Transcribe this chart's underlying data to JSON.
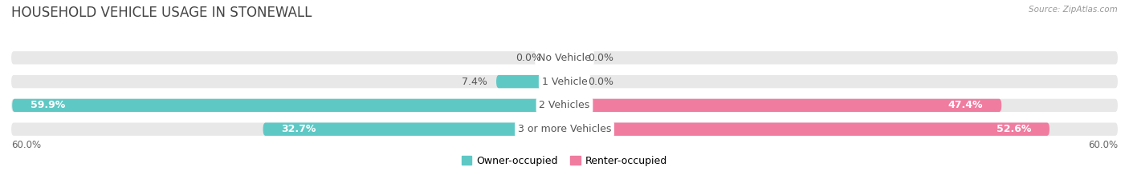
{
  "title": "HOUSEHOLD VEHICLE USAGE IN STONEWALL",
  "source": "Source: ZipAtlas.com",
  "categories": [
    "No Vehicle",
    "1 Vehicle",
    "2 Vehicles",
    "3 or more Vehicles"
  ],
  "owner_values": [
    0.0,
    7.4,
    59.9,
    32.7
  ],
  "renter_values": [
    0.0,
    0.0,
    47.4,
    52.6
  ],
  "owner_color": "#5ec8c5",
  "renter_color": "#f07ca0",
  "bg_color": "#ffffff",
  "bar_bg_color": "#e8e8e8",
  "max_val": 60.0,
  "axis_label_left": "60.0%",
  "axis_label_right": "60.0%",
  "title_fontsize": 12,
  "label_fontsize": 9,
  "category_fontsize": 9,
  "legend_fontsize": 9
}
